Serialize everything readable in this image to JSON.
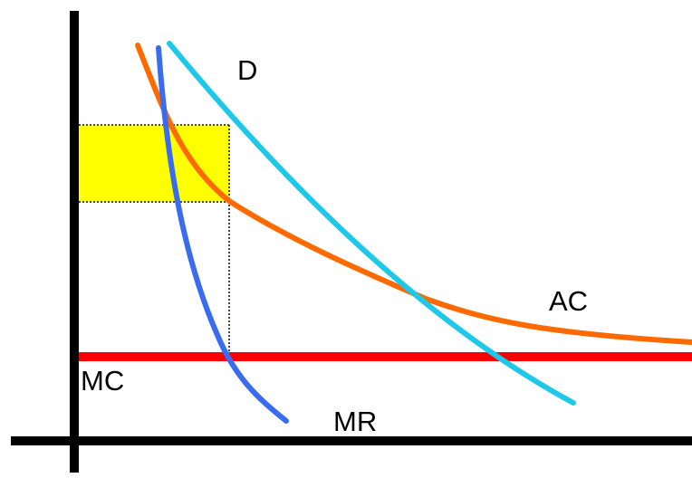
{
  "diagram": {
    "labels": {
      "demand": "D",
      "average_cost": "AC",
      "marginal_cost": "MC",
      "marginal_revenue": "MR"
    },
    "colors": {
      "axes": "#000000",
      "demand": "#1ec8e8",
      "average_cost": "#ff6a00",
      "marginal_cost": "#ff0000",
      "marginal_revenue": "#3a6cf0",
      "profit_area": "#ffff00",
      "guide_lines": "#444444"
    }
  }
}
